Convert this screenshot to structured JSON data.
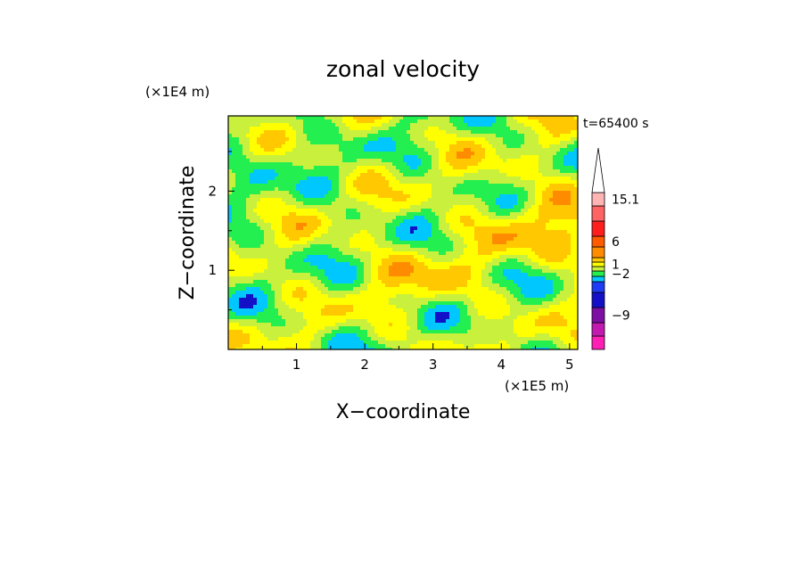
{
  "chart_data": {
    "type": "heatmap",
    "title": "zonal velocity",
    "xlabel": "X−coordinate",
    "ylabel": "Z−coordinate",
    "x_scale_label": "(×1E5 m)",
    "y_scale_label": "(×1E4 m)",
    "time_label": "t=65400 s",
    "xlim": [
      0.0,
      5.12
    ],
    "ylim": [
      0.0,
      2.95
    ],
    "x_ticks": [
      {
        "value": 1,
        "label": "1"
      },
      {
        "value": 2,
        "label": "2"
      },
      {
        "value": 3,
        "label": "3"
      },
      {
        "value": 4,
        "label": "4"
      },
      {
        "value": 5,
        "label": "5"
      }
    ],
    "y_ticks": [
      {
        "value": 1,
        "label": "1"
      },
      {
        "value": 2,
        "label": "2"
      }
    ],
    "colorbar": {
      "levels": [
        {
          "color": "#ff1fb4"
        },
        {
          "color": "#c21ab0"
        },
        {
          "color": "#7d0fa5"
        },
        {
          "color": "#1410c8"
        },
        {
          "color": "#1e3cf5"
        },
        {
          "color": "#00c8ff"
        },
        {
          "color": "#23f050"
        },
        {
          "color": "#c8f03c"
        },
        {
          "color": "#ffff00"
        },
        {
          "color": "#ffc800"
        },
        {
          "color": "#ff8c00"
        },
        {
          "color": "#ff5a00"
        },
        {
          "color": "#ff1e1e"
        },
        {
          "color": "#ff6464"
        },
        {
          "color": "#ffb4b4"
        },
        {
          "color": "#ffffff"
        }
      ],
      "labels": [
        {
          "value": 15.1,
          "label": "15.1",
          "level_index": 14
        },
        {
          "value": 6,
          "label": "6",
          "level_index": 11
        },
        {
          "value": 1,
          "label": "1",
          "level_index": 8
        },
        {
          "value": -2,
          "label": "−2",
          "level_index": 6
        },
        {
          "value": -9,
          "label": "−9",
          "level_index": 2
        }
      ]
    },
    "field_colors": [
      "#1410c8",
      "#00c8ff",
      "#23f050",
      "#c8f03c",
      "#ffff00",
      "#ffc800",
      "#ff8c00"
    ]
  }
}
